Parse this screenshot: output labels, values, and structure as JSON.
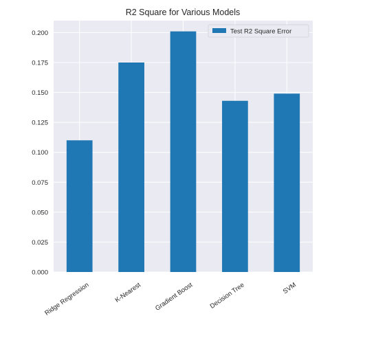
{
  "chart_data": {
    "type": "bar",
    "title": "R2 Square for Various Models",
    "xlabel": "",
    "ylabel": "",
    "categories": [
      "Ridge Regression",
      "K-Nearest",
      "Gradient Boost",
      "Decision Tree",
      "SVM"
    ],
    "series": [
      {
        "name": "Test R2 Square Error",
        "values": [
          0.11,
          0.175,
          0.201,
          0.143,
          0.149
        ]
      }
    ],
    "ylim": [
      0,
      0.21
    ],
    "yticks": [
      "0.000",
      "0.025",
      "0.050",
      "0.075",
      "0.100",
      "0.125",
      "0.150",
      "0.175",
      "0.200"
    ],
    "grid": true,
    "legend_position": "top-right",
    "colors": {
      "bar": "#1f77b4",
      "plot_background": "#eaeaf2",
      "grid": "#ffffff"
    }
  }
}
